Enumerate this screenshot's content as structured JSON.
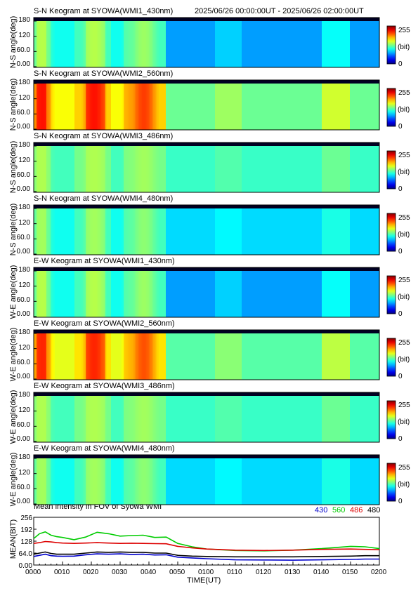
{
  "header": {
    "time_range": "2025/06/26 00:00:00UT - 2025/06/26 02:00:00UT"
  },
  "colorbar": {
    "max_label": "255",
    "unit_label": "(bit)",
    "min_label": "0"
  },
  "chart_data": [
    {
      "type": "heatmap",
      "title": "S-N Keogram at SYOWA(WMI1_430nm)",
      "ylabel": "N-S angle(deg)",
      "yticks": [
        "180",
        "120",
        "60.0",
        "0.00"
      ],
      "ylim": [
        0,
        180
      ],
      "colorbar": {
        "range": [
          0,
          255
        ],
        "unit": "(bit)"
      },
      "baseline": 0.3,
      "pre_boost": 0.14,
      "osc": 0.06,
      "tail": 0.1
    },
    {
      "type": "heatmap",
      "title": "S-N Keogram at SYOWA(WMI2_560nm)",
      "ylabel": "N-S angle(deg)",
      "yticks": [
        "180",
        "120",
        "60.0",
        "0.00"
      ],
      "ylim": [
        0,
        180
      ],
      "colorbar": {
        "range": [
          0,
          255
        ],
        "unit": "(bit)"
      },
      "baseline": 0.5,
      "pre_boost": 0.17,
      "osc": 0.1,
      "tail": 0.1
    },
    {
      "type": "heatmap",
      "title": "S-N Keogram at SYOWA(WMI3_486nm)",
      "ylabel": "N-S angle(deg)",
      "yticks": [
        "180",
        "120",
        "60.0",
        "0.00"
      ],
      "ylim": [
        0,
        180
      ],
      "colorbar": {
        "range": [
          0,
          255
        ],
        "unit": "(bit)"
      },
      "baseline": 0.45,
      "pre_boost": 0.04,
      "osc": 0.03,
      "tail": 0.05
    },
    {
      "type": "heatmap",
      "title": "S-N Keogram at SYOWA(WMI4_480nm)",
      "ylabel": "N-S angle(deg)",
      "yticks": [
        "180",
        "120",
        "60.0",
        "0.00"
      ],
      "ylim": [
        0,
        180
      ],
      "colorbar": {
        "range": [
          0,
          255
        ],
        "unit": "(bit)"
      },
      "baseline": 0.36,
      "pre_boost": 0.08,
      "osc": 0.05,
      "tail": 0.06
    },
    {
      "type": "heatmap",
      "title": "E-W Keogram at SYOWA(WMI1_430nm)",
      "ylabel": "W-E angle(deg)",
      "yticks": [
        "180",
        "120",
        "60.0",
        "0.00"
      ],
      "ylim": [
        0,
        180
      ],
      "colorbar": {
        "range": [
          0,
          255
        ],
        "unit": "(bit)"
      },
      "baseline": 0.3,
      "pre_boost": 0.14,
      "osc": 0.06,
      "tail": 0.1
    },
    {
      "type": "heatmap",
      "title": "E-W Keogram at SYOWA(WMI2_560nm)",
      "ylabel": "W-E angle(deg)",
      "yticks": [
        "180",
        "120",
        "60.0",
        "0.00"
      ],
      "ylim": [
        0,
        180
      ],
      "colorbar": {
        "range": [
          0,
          255
        ],
        "unit": "(bit)"
      },
      "baseline": 0.48,
      "pre_boost": 0.17,
      "osc": 0.1,
      "tail": 0.1
    },
    {
      "type": "heatmap",
      "title": "E-W Keogram at SYOWA(WMI3_486nm)",
      "ylabel": "W-E angle(deg)",
      "yticks": [
        "180",
        "120",
        "60.0",
        "0.00"
      ],
      "ylim": [
        0,
        180
      ],
      "colorbar": {
        "range": [
          0,
          255
        ],
        "unit": "(bit)"
      },
      "baseline": 0.45,
      "pre_boost": 0.04,
      "osc": 0.03,
      "tail": 0.05
    },
    {
      "type": "heatmap",
      "title": "E-W Keogram at SYOWA(WMI4_480nm)",
      "ylabel": "W-E angle(deg)",
      "yticks": [
        "180",
        "120",
        "60.0",
        "0.00"
      ],
      "ylim": [
        0,
        180
      ],
      "colorbar": {
        "range": [
          0,
          255
        ],
        "unit": "(bit)"
      },
      "baseline": 0.36,
      "pre_boost": 0.08,
      "osc": 0.05,
      "tail": 0.06
    },
    {
      "type": "line",
      "title": "Mean intensity in FOV of Syowa WMI",
      "xlabel": "TIME(UT)",
      "ylabel": "MEAN(BIT)",
      "xlim": [
        0,
        120
      ],
      "ylim": [
        0,
        256
      ],
      "yticks": [
        "256",
        "192",
        "128",
        "64.0",
        "0.00"
      ],
      "xticks": [
        "0000",
        "0010",
        "0020",
        "0030",
        "0040",
        "0050",
        "0100",
        "0110",
        "0120",
        "0130",
        "0140",
        "0150",
        "0200"
      ],
      "series": [
        {
          "name": "430",
          "color": "#0000cc",
          "x": [
            0,
            2,
            4,
            6,
            8,
            10,
            14,
            18,
            22,
            26,
            30,
            34,
            38,
            42,
            46,
            50,
            55,
            60,
            70,
            80,
            90,
            100,
            110,
            115,
            120
          ],
          "y": [
            46,
            52,
            58,
            50,
            48,
            47,
            48,
            55,
            60,
            58,
            60,
            57,
            58,
            54,
            55,
            42,
            38,
            34,
            28,
            27,
            26,
            28,
            30,
            32,
            32
          ]
        },
        {
          "name": "560",
          "color": "#00cc00",
          "x": [
            0,
            2,
            4,
            6,
            8,
            10,
            14,
            18,
            22,
            26,
            30,
            34,
            38,
            42,
            46,
            50,
            55,
            60,
            70,
            80,
            90,
            100,
            110,
            115,
            120
          ],
          "y": [
            142,
            168,
            178,
            160,
            152,
            148,
            136,
            150,
            176,
            168,
            155,
            158,
            160,
            148,
            150,
            116,
            98,
            86,
            78,
            76,
            80,
            88,
            100,
            98,
            88
          ]
        },
        {
          "name": "486",
          "color": "#dd0000",
          "x": [
            0,
            2,
            4,
            6,
            8,
            10,
            14,
            18,
            22,
            26,
            30,
            34,
            38,
            42,
            46,
            50,
            55,
            60,
            70,
            80,
            90,
            100,
            110,
            115,
            120
          ],
          "y": [
            116,
            120,
            126,
            124,
            120,
            118,
            116,
            118,
            120,
            118,
            116,
            117,
            116,
            115,
            114,
            100,
            92,
            86,
            80,
            78,
            80,
            84,
            86,
            84,
            82
          ]
        },
        {
          "name": "480",
          "color": "#000000",
          "x": [
            0,
            2,
            4,
            6,
            8,
            10,
            14,
            18,
            22,
            26,
            30,
            34,
            38,
            42,
            46,
            50,
            55,
            60,
            70,
            80,
            90,
            100,
            110,
            115,
            120
          ],
          "y": [
            58,
            64,
            70,
            62,
            58,
            58,
            58,
            64,
            70,
            68,
            70,
            68,
            68,
            64,
            64,
            52,
            48,
            46,
            44,
            44,
            44,
            46,
            48,
            50,
            50
          ]
        }
      ]
    }
  ]
}
